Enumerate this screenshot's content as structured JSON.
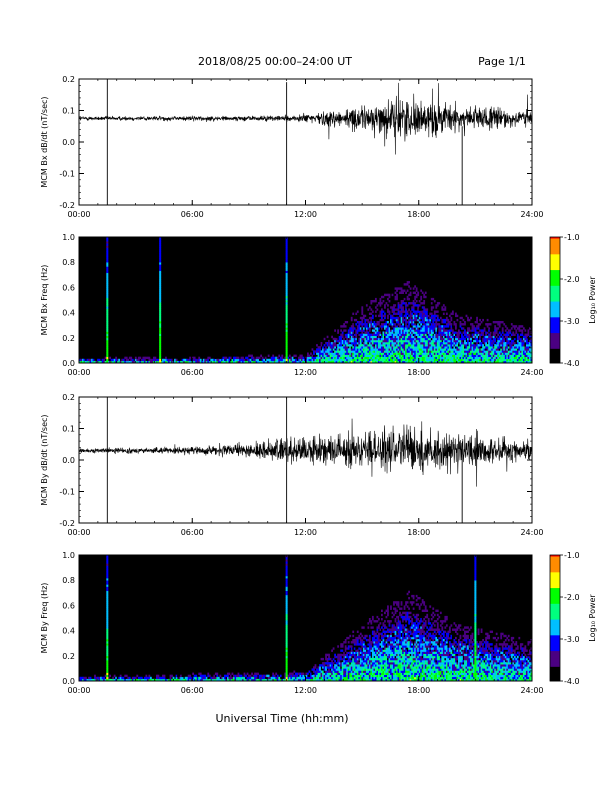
{
  "header": {
    "title": "2018/08/25  00:00–24:00 UT",
    "page": "Page 1/1"
  },
  "footer": {
    "xlabel": "Universal Time (hh:mm)"
  },
  "colors": {
    "trace": "#000000",
    "spectrogram_background": "#000000",
    "colormap": [
      "#000000",
      "#4b0082",
      "#0000ff",
      "#00bfff",
      "#00ff7f",
      "#00ff00",
      "#ffff00",
      "#ff8c00",
      "#ff0000"
    ]
  },
  "chart_data": [
    {
      "type": "line",
      "ylabel": "MCM Bx dB/dt (nT/sec)",
      "xlim": [
        0,
        24
      ],
      "ylim": [
        -0.2,
        0.2
      ],
      "x_ticks": [
        "00:00",
        "06:00",
        "12:00",
        "18:00",
        "24:00"
      ],
      "y_ticks": [
        "0.2",
        "0.1",
        "0.0",
        "-0.1",
        "-0.2"
      ],
      "baseline": 0.075,
      "noise_envelope": [
        {
          "x": 0,
          "amp": 0.006
        },
        {
          "x": 11,
          "amp": 0.008
        },
        {
          "x": 13,
          "amp": 0.02
        },
        {
          "x": 15,
          "amp": 0.035
        },
        {
          "x": 17.5,
          "amp": 0.06
        },
        {
          "x": 20,
          "amp": 0.04
        },
        {
          "x": 24,
          "amp": 0.025
        }
      ],
      "spikes": [
        {
          "x": 1.5,
          "ymin": -0.2,
          "ymax": 0.2
        },
        {
          "x": 11.0,
          "ymin": -0.2,
          "ymax": 0.19
        },
        {
          "x": 20.3,
          "ymin": -0.2,
          "ymax": 0.05
        }
      ]
    },
    {
      "type": "heatmap",
      "ylabel": "MCM Bx Freq (Hz)",
      "xlim": [
        0,
        24
      ],
      "ylim": [
        0,
        1.0
      ],
      "x_ticks": [
        "00:00",
        "06:00",
        "12:00",
        "18:00",
        "24:00"
      ],
      "y_ticks": [
        "1.0",
        "0.8",
        "0.6",
        "0.4",
        "0.2",
        "0.0"
      ],
      "colorbar": {
        "label": "Log₁₀ Power",
        "range": [
          -4.0,
          -1.0
        ],
        "ticks": [
          "-1.0",
          "-2.0",
          "-3.0",
          "-4.0"
        ]
      },
      "vertical_lines": [
        1.5,
        4.3,
        11.0
      ],
      "activity_envelope": [
        {
          "x": 0,
          "fmax": 0.03
        },
        {
          "x": 12,
          "fmax": 0.05
        },
        {
          "x": 15,
          "fmax": 0.35
        },
        {
          "x": 17.5,
          "fmax": 0.5
        },
        {
          "x": 20,
          "fmax": 0.3
        },
        {
          "x": 24,
          "fmax": 0.22
        }
      ]
    },
    {
      "type": "line",
      "ylabel": "MCM By dB/dt (nT/sec)",
      "xlim": [
        0,
        24
      ],
      "ylim": [
        -0.2,
        0.2
      ],
      "x_ticks": [
        "00:00",
        "06:00",
        "12:00",
        "18:00",
        "24:00"
      ],
      "y_ticks": [
        "0.2",
        "0.1",
        "0.0",
        "-0.1",
        "-0.2"
      ],
      "baseline": 0.03,
      "noise_envelope": [
        {
          "x": 0,
          "amp": 0.006
        },
        {
          "x": 6,
          "amp": 0.01
        },
        {
          "x": 9,
          "amp": 0.02
        },
        {
          "x": 11,
          "amp": 0.035
        },
        {
          "x": 13,
          "amp": 0.04
        },
        {
          "x": 15,
          "amp": 0.05
        },
        {
          "x": 17.5,
          "amp": 0.07
        },
        {
          "x": 20,
          "amp": 0.05
        },
        {
          "x": 24,
          "amp": 0.03
        }
      ],
      "spikes": [
        {
          "x": 1.5,
          "ymin": -0.2,
          "ymax": 0.2
        },
        {
          "x": 11.0,
          "ymin": -0.2,
          "ymax": 0.2
        },
        {
          "x": 20.3,
          "ymin": -0.2,
          "ymax": 0.05
        }
      ]
    },
    {
      "type": "heatmap",
      "ylabel": "MCM By Freq (Hz)",
      "xlim": [
        0,
        24
      ],
      "ylim": [
        0,
        1.0
      ],
      "x_ticks": [
        "00:00",
        "06:00",
        "12:00",
        "18:00",
        "24:00"
      ],
      "y_ticks": [
        "1.0",
        "0.8",
        "0.6",
        "0.4",
        "0.2",
        "0.0"
      ],
      "colorbar": {
        "label": "Log₁₀ Power",
        "range": [
          -4.0,
          -1.0
        ],
        "ticks": [
          "-1.0",
          "-2.0",
          "-3.0",
          "-4.0"
        ]
      },
      "vertical_lines": [
        1.5,
        11.0,
        21.0
      ],
      "activity_envelope": [
        {
          "x": 0,
          "fmax": 0.03
        },
        {
          "x": 12,
          "fmax": 0.06
        },
        {
          "x": 15,
          "fmax": 0.35
        },
        {
          "x": 17.5,
          "fmax": 0.55
        },
        {
          "x": 20,
          "fmax": 0.35
        },
        {
          "x": 24,
          "fmax": 0.25
        }
      ]
    }
  ]
}
